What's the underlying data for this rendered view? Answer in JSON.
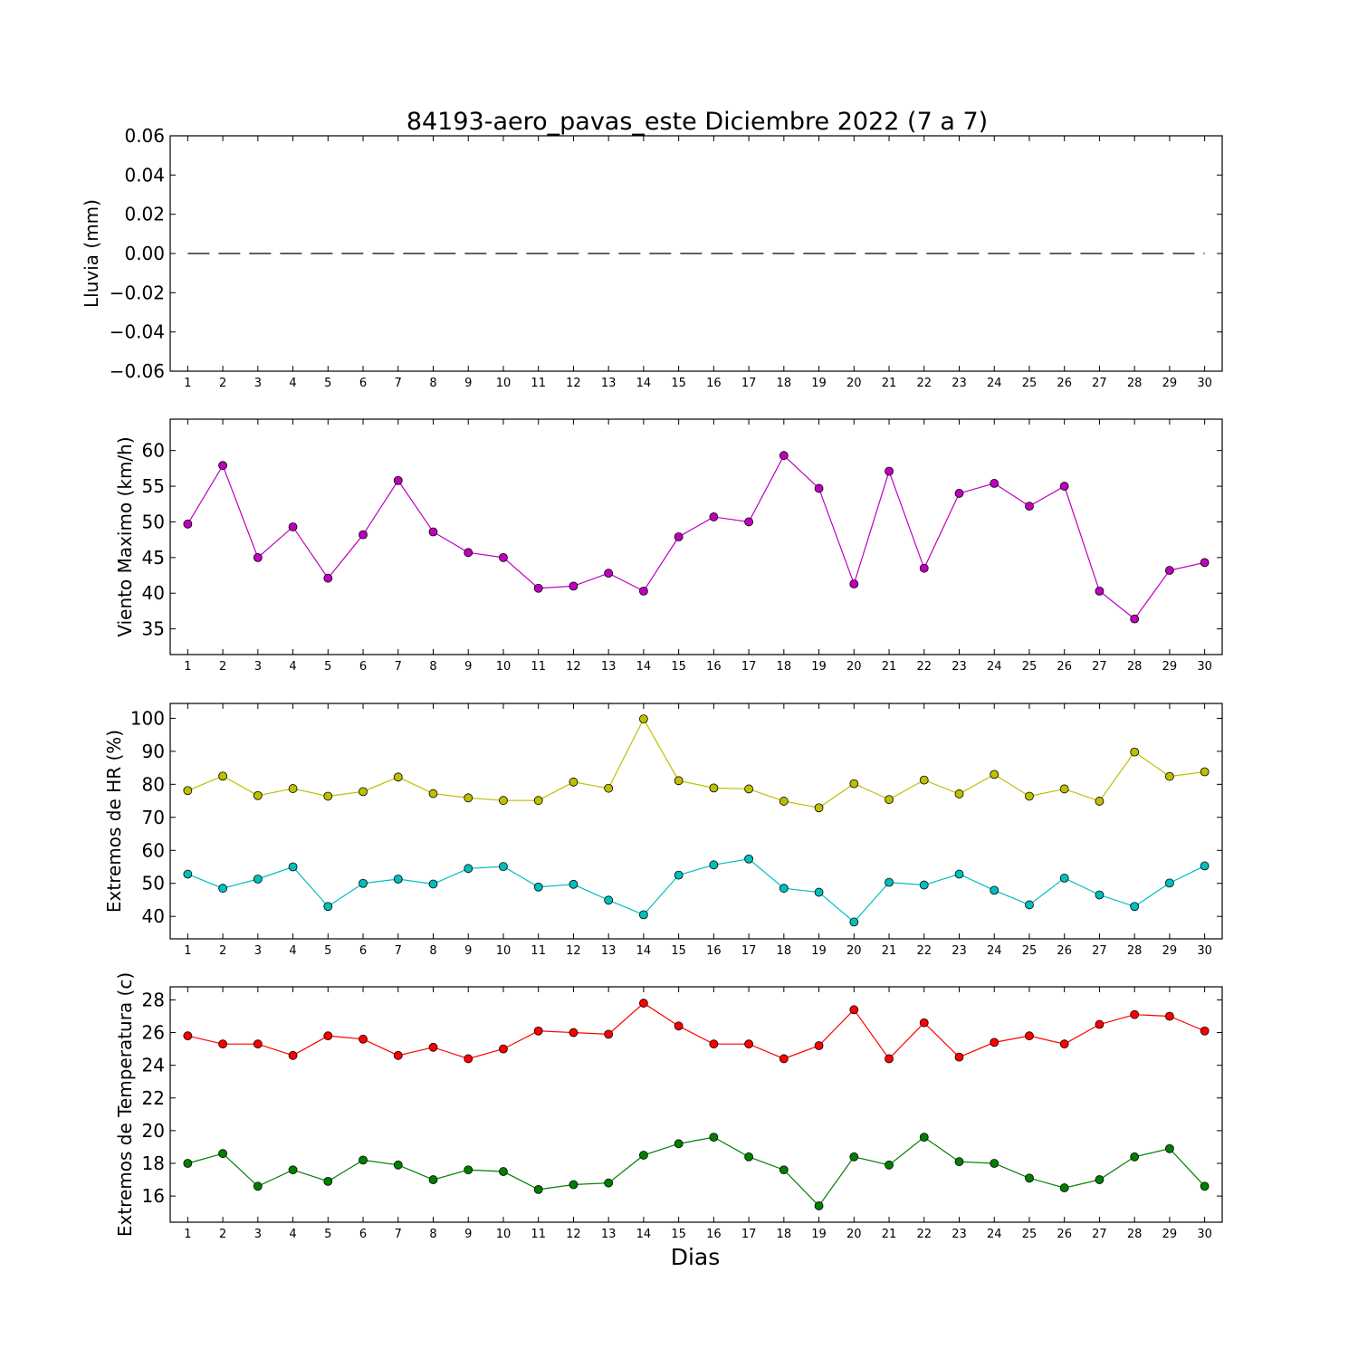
{
  "chart_data": {
    "title": "84193-aero_pavas_este Diciembre 2022  (7 a 7)",
    "xlabel": "Dias",
    "panels": [
      {
        "type": "line",
        "ylabel": "Lluvia (mm)",
        "x": [
          1,
          2,
          3,
          4,
          5,
          6,
          7,
          8,
          9,
          10,
          11,
          12,
          13,
          14,
          15,
          16,
          17,
          18,
          19,
          20,
          21,
          22,
          23,
          24,
          25,
          26,
          27,
          28,
          29,
          30
        ],
        "xlim": [
          0.5,
          30.5
        ],
        "ylim": [
          -0.06,
          0.06
        ],
        "yticks": [
          0.06,
          0.04,
          0.02,
          0.0,
          -0.02,
          -0.04,
          -0.06
        ],
        "ytick_labels": [
          "0.06",
          "0.04",
          "0.02",
          "0.00",
          "−0.02",
          "−0.04",
          "−0.06"
        ],
        "series": [
          {
            "color": "#000000",
            "style": "dashed",
            "marker": "none",
            "values": [
              0,
              0,
              0,
              0,
              0,
              0,
              0,
              0,
              0,
              0,
              0,
              0,
              0,
              0,
              0,
              0,
              0,
              0,
              0,
              0,
              0,
              0,
              0,
              0,
              0,
              0,
              0,
              0,
              0,
              0
            ]
          }
        ]
      },
      {
        "type": "line",
        "ylabel": "Viento Maximo (km/h)",
        "x": [
          1,
          2,
          3,
          4,
          5,
          6,
          7,
          8,
          9,
          10,
          11,
          12,
          13,
          14,
          15,
          16,
          17,
          18,
          19,
          20,
          21,
          22,
          23,
          24,
          25,
          26,
          27,
          28,
          29,
          30
        ],
        "xlim": [
          0.5,
          30.5
        ],
        "ylim": [
          31.4,
          64.4
        ],
        "yticks": [
          35,
          40,
          45,
          50,
          55,
          60
        ],
        "ytick_labels": [
          "35",
          "40",
          "45",
          "50",
          "55",
          "60"
        ],
        "series": [
          {
            "color": "#bf00bf",
            "style": "solid",
            "marker": "circle",
            "values": [
              49.7,
              57.9,
              45.0,
              49.3,
              42.1,
              48.2,
              55.8,
              48.6,
              45.7,
              45.0,
              40.7,
              41.0,
              42.8,
              40.3,
              47.9,
              50.7,
              50.0,
              59.3,
              54.7,
              41.3,
              57.1,
              43.5,
              54.0,
              55.4,
              52.2,
              55.0,
              40.3,
              36.4,
              43.2,
              44.3
            ]
          }
        ]
      },
      {
        "type": "line",
        "ylabel": "Extremos de HR (%)",
        "x": [
          1,
          2,
          3,
          4,
          5,
          6,
          7,
          8,
          9,
          10,
          11,
          12,
          13,
          14,
          15,
          16,
          17,
          18,
          19,
          20,
          21,
          22,
          23,
          24,
          25,
          26,
          27,
          28,
          29,
          30
        ],
        "xlim": [
          0.5,
          30.5
        ],
        "ylim": [
          33.2,
          104.5
        ],
        "yticks": [
          40,
          50,
          60,
          70,
          80,
          90,
          100
        ],
        "ytick_labels": [
          "40",
          "50",
          "60",
          "70",
          "80",
          "90",
          "100"
        ],
        "series": [
          {
            "color": "#bfbf00",
            "style": "solid",
            "marker": "circle",
            "values": [
              78.1,
              82.5,
              76.6,
              78.7,
              76.4,
              77.8,
              82.2,
              77.2,
              75.9,
              75.1,
              75.1,
              80.7,
              78.8,
              99.8,
              81.1,
              78.9,
              78.6,
              74.9,
              72.9,
              80.2,
              75.4,
              81.3,
              77.1,
              83.0,
              76.4,
              78.6,
              74.9,
              89.8,
              82.4,
              83.8
            ]
          },
          {
            "color": "#00bfbf",
            "style": "solid",
            "marker": "circle",
            "values": [
              52.8,
              48.5,
              51.3,
              55.0,
              43.0,
              50.0,
              51.3,
              49.8,
              54.5,
              55.1,
              48.9,
              49.7,
              44.9,
              40.5,
              52.5,
              55.6,
              57.4,
              48.5,
              47.3,
              38.3,
              50.3,
              49.5,
              52.8,
              47.9,
              43.5,
              51.6,
              46.5,
              43.0,
              50.1,
              55.3
            ]
          }
        ]
      },
      {
        "type": "line",
        "ylabel": "Extremos de Temperatura (c)",
        "x": [
          1,
          2,
          3,
          4,
          5,
          6,
          7,
          8,
          9,
          10,
          11,
          12,
          13,
          14,
          15,
          16,
          17,
          18,
          19,
          20,
          21,
          22,
          23,
          24,
          25,
          26,
          27,
          28,
          29,
          30
        ],
        "xlim": [
          0.5,
          30.5
        ],
        "ylim": [
          14.4,
          28.8
        ],
        "yticks": [
          16,
          18,
          20,
          22,
          24,
          26,
          28
        ],
        "ytick_labels": [
          "16",
          "18",
          "20",
          "22",
          "24",
          "26",
          "28"
        ],
        "series": [
          {
            "color": "#ff0000",
            "style": "solid",
            "marker": "circle",
            "values": [
              25.8,
              25.3,
              25.3,
              24.6,
              25.8,
              25.6,
              24.6,
              25.1,
              24.4,
              25.0,
              26.1,
              26.0,
              25.9,
              27.8,
              26.4,
              25.3,
              25.3,
              24.4,
              25.2,
              27.4,
              24.4,
              26.6,
              24.5,
              25.4,
              25.8,
              25.3,
              26.5,
              27.1,
              27.0,
              26.1
            ]
          },
          {
            "color": "#007f00",
            "style": "solid",
            "marker": "circle",
            "values": [
              18.0,
              18.6,
              16.6,
              17.6,
              16.9,
              18.2,
              17.9,
              17.0,
              17.6,
              17.5,
              16.4,
              16.7,
              16.8,
              18.5,
              19.2,
              19.6,
              18.4,
              17.6,
              15.4,
              18.4,
              17.9,
              19.6,
              18.1,
              18.0,
              17.1,
              16.5,
              17.0,
              18.4,
              18.9,
              16.6
            ]
          }
        ]
      }
    ]
  }
}
